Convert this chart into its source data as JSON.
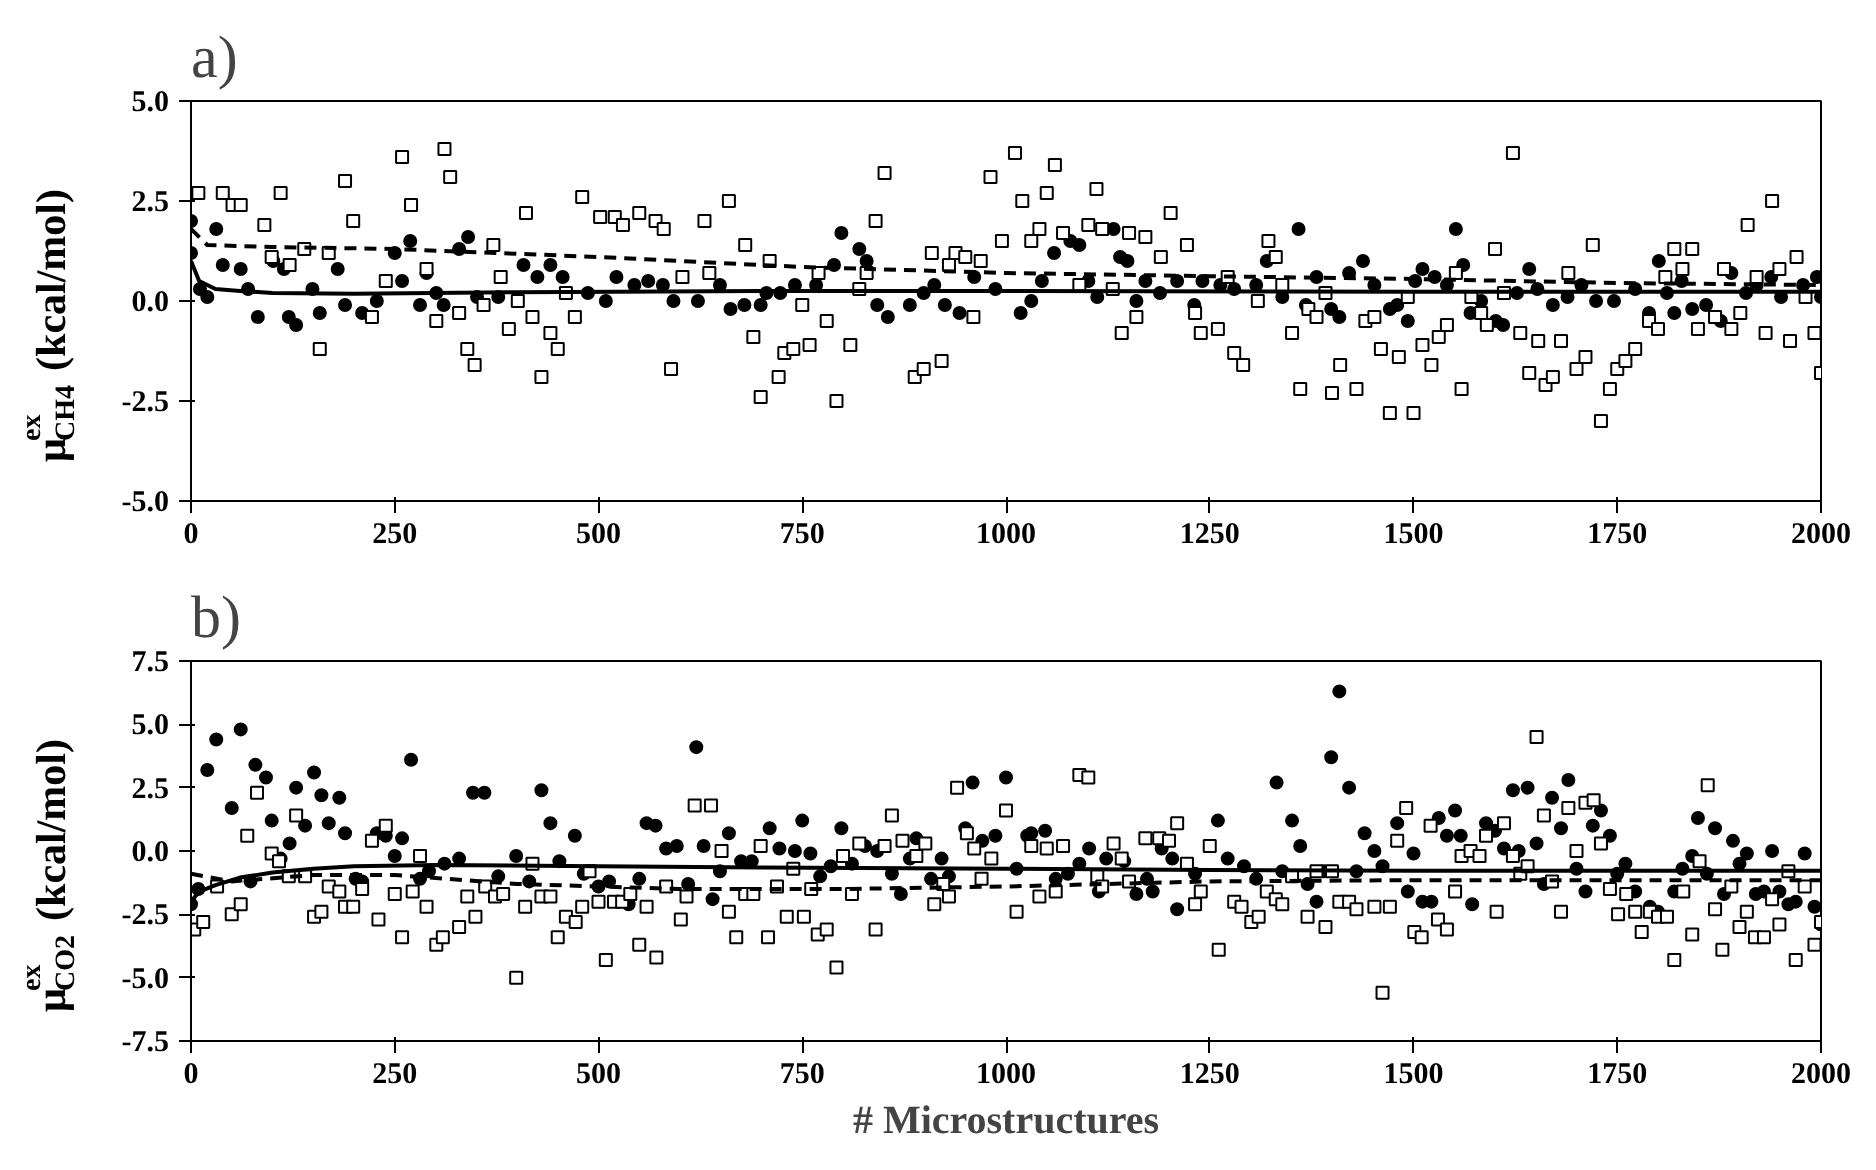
{
  "chart_data": [
    {
      "type": "scatter",
      "annotations": [
        "a)"
      ],
      "ylabel": "μ$^{ex}$$_{CH4}$ (kcal/mol)",
      "xlim": [
        0,
        2000
      ],
      "xticks": [
        0,
        250,
        500,
        750,
        1000,
        1250,
        1500,
        1750,
        2000
      ],
      "ylim": [
        -5,
        5
      ],
      "yticks": [
        {
          "value": -5,
          "label": "-5.0"
        },
        {
          "value": -2.5,
          "label": "-2.5"
        },
        {
          "value": 0,
          "label": "0.0"
        },
        {
          "value": 2.5,
          "label": "2.5"
        },
        {
          "value": 5,
          "label": "5.0"
        }
      ],
      "series": [
        {
          "type": "scatter",
          "marker": "circle",
          "color": "#000000",
          "x": [
            0,
            0,
            11,
            20,
            31,
            39,
            61,
            70,
            82,
            101,
            114,
            120,
            129,
            149,
            158,
            180,
            189,
            210,
            228,
            250,
            259,
            269,
            281,
            289,
            301,
            310,
            329,
            340,
            351,
            377,
            408,
            425,
            441,
            456,
            487,
            509,
            522,
            544,
            561,
            579,
            592,
            622,
            649,
            662,
            679,
            699,
            706,
            723,
            741,
            767,
            789,
            798,
            820,
            829,
            842,
            855,
            882,
            899,
            912,
            925,
            943,
            961,
            987,
            1018,
            1031,
            1044,
            1059,
            1079,
            1090,
            1101,
            1112,
            1132,
            1140,
            1149,
            1160,
            1171,
            1189,
            1210,
            1231,
            1241,
            1263,
            1280,
            1307,
            1320,
            1339,
            1359,
            1368,
            1381,
            1399,
            1409,
            1421,
            1438,
            1452,
            1471,
            1480,
            1493,
            1502,
            1511,
            1526,
            1541,
            1552,
            1561,
            1570,
            1583,
            1601,
            1610,
            1627,
            1642,
            1652,
            1671,
            1689,
            1706,
            1724,
            1746,
            1772,
            1789,
            1801,
            1811,
            1820,
            1829,
            1842,
            1859,
            1877,
            1890,
            1908,
            1921,
            1939,
            1951,
            1978,
            1995,
            2000
          ],
          "values": [
            2.0,
            1.2,
            0.3,
            0.1,
            1.8,
            0.9,
            0.8,
            0.3,
            -0.4,
            1.0,
            0.8,
            -0.4,
            -0.6,
            0.3,
            -0.3,
            0.8,
            -0.1,
            -0.3,
            0.0,
            1.2,
            0.5,
            1.5,
            -0.1,
            0.7,
            0.2,
            -0.1,
            1.3,
            1.6,
            0.1,
            0.1,
            0.9,
            0.6,
            0.9,
            0.6,
            0.2,
            0.0,
            0.6,
            0.4,
            0.5,
            0.4,
            0.0,
            0.0,
            0.4,
            -0.2,
            -0.1,
            -0.1,
            0.2,
            0.2,
            0.4,
            0.4,
            0.9,
            1.7,
            1.3,
            1.0,
            -0.1,
            -0.4,
            -0.1,
            0.2,
            0.4,
            -0.1,
            -0.3,
            0.6,
            0.3,
            -0.3,
            0.0,
            0.5,
            1.2,
            1.5,
            1.4,
            0.5,
            0.1,
            1.8,
            1.1,
            1.0,
            0.0,
            0.5,
            0.2,
            0.5,
            -0.1,
            0.5,
            0.4,
            0.3,
            0.4,
            1.0,
            0.1,
            1.8,
            -0.1,
            0.6,
            -0.2,
            -0.4,
            0.7,
            1.0,
            0.4,
            -0.2,
            -0.1,
            -0.5,
            0.5,
            0.8,
            0.6,
            0.4,
            1.8,
            0.9,
            -0.3,
            0.0,
            -0.5,
            -0.6,
            0.2,
            0.8,
            0.3,
            -0.1,
            0.1,
            0.4,
            0.0,
            0.0,
            0.3,
            -0.3,
            1.0,
            0.2,
            -0.3,
            0.5,
            -0.2,
            -0.1,
            -0.5,
            0.7,
            0.2,
            0.4,
            0.6,
            0.1,
            0.4,
            0.6,
            0.1
          ]
        },
        {
          "type": "scatter",
          "marker": "square",
          "color": "#000000",
          "x": [
            9,
            39,
            51,
            61,
            90,
            99,
            110,
            121,
            139,
            158,
            169,
            189,
            199,
            222,
            239,
            259,
            270,
            289,
            301,
            311,
            318,
            329,
            339,
            348,
            359,
            371,
            380,
            390,
            401,
            411,
            419,
            430,
            441,
            450,
            460,
            471,
            480,
            502,
            520,
            530,
            550,
            570,
            580,
            589,
            603,
            630,
            636,
            660,
            680,
            690,
            699,
            710,
            721,
            728,
            739,
            750,
            759,
            770,
            780,
            792,
            809,
            820,
            829,
            840,
            851,
            888,
            899,
            909,
            921,
            930,
            938,
            950,
            960,
            969,
            981,
            995,
            1011,
            1020,
            1031,
            1041,
            1050,
            1060,
            1070,
            1090,
            1101,
            1111,
            1118,
            1131,
            1142,
            1151,
            1160,
            1171,
            1190,
            1202,
            1222,
            1232,
            1239,
            1260,
            1272,
            1280,
            1291,
            1309,
            1322,
            1331,
            1339,
            1351,
            1361,
            1371,
            1381,
            1392,
            1400,
            1410,
            1430,
            1441,
            1452,
            1460,
            1471,
            1482,
            1493,
            1500,
            1511,
            1522,
            1531,
            1541,
            1552,
            1559,
            1571,
            1583,
            1590,
            1600,
            1611,
            1622,
            1631,
            1642,
            1653,
            1662,
            1671,
            1681,
            1690,
            1700,
            1711,
            1720,
            1730,
            1741,
            1750,
            1760,
            1772,
            1789,
            1800,
            1809,
            1820,
            1830,
            1842,
            1849,
            1870,
            1881,
            1890,
            1901,
            1910,
            1921,
            1932,
            1940,
            1949,
            1962,
            1970,
            1981,
            1992,
            2000
          ],
          "values": [
            2.7,
            2.7,
            2.4,
            2.4,
            1.9,
            1.1,
            2.7,
            0.9,
            1.3,
            -1.2,
            1.2,
            3.0,
            2.0,
            -0.4,
            0.5,
            3.6,
            2.4,
            0.8,
            -0.5,
            3.8,
            3.1,
            -0.3,
            -1.2,
            -1.6,
            -0.1,
            1.4,
            0.6,
            -0.7,
            0.0,
            2.2,
            -0.4,
            -1.9,
            -0.8,
            -1.2,
            0.2,
            -0.4,
            2.6,
            2.1,
            2.1,
            1.9,
            2.2,
            2.0,
            1.8,
            -1.7,
            0.6,
            2.0,
            0.7,
            2.5,
            1.4,
            -0.9,
            -2.4,
            1.0,
            -1.9,
            -1.3,
            -1.2,
            -0.1,
            -1.1,
            0.7,
            -0.5,
            -2.5,
            -1.1,
            0.3,
            0.7,
            2.0,
            3.2,
            -1.9,
            -1.7,
            1.2,
            -1.5,
            0.9,
            1.2,
            1.1,
            -0.4,
            1.0,
            3.1,
            1.5,
            3.7,
            2.5,
            1.5,
            1.8,
            2.7,
            3.4,
            1.7,
            0.4,
            1.9,
            2.8,
            1.8,
            0.3,
            -0.8,
            1.7,
            -0.4,
            1.6,
            1.1,
            2.2,
            1.4,
            -0.3,
            -0.8,
            -0.7,
            0.6,
            -1.3,
            -1.6,
            0.0,
            1.5,
            1.1,
            0.4,
            -0.8,
            -2.2,
            -0.2,
            -0.4,
            0.2,
            -2.3,
            -1.6,
            -2.2,
            -0.5,
            -0.4,
            -1.2,
            -2.8,
            -1.4,
            0.1,
            -2.8,
            -1.1,
            -1.6,
            -0.9,
            -0.6,
            0.7,
            -2.2,
            0.1,
            -0.3,
            -0.6,
            1.3,
            0.2,
            3.7,
            -0.8,
            -1.8,
            -1.0,
            -2.1,
            -1.9,
            -1.0,
            0.7,
            -1.7,
            -1.4,
            1.4,
            -3.0,
            -2.2,
            -1.7,
            -1.5,
            -1.2,
            -0.5,
            -0.7,
            0.6,
            1.3,
            0.8,
            1.3,
            -0.7,
            -0.4,
            0.8,
            -0.7,
            -0.3,
            1.9,
            0.6,
            -0.8,
            2.5,
            0.8,
            -1.0,
            1.1,
            0.1,
            -0.8,
            -1.8
          ]
        },
        {
          "type": "line",
          "line_style": "solid",
          "color": "#000000",
          "x": [
            0,
            10,
            30,
            60,
            100,
            200,
            400,
            700,
            1000,
            1500,
            2000
          ],
          "values": [
            1.0,
            0.5,
            0.3,
            0.25,
            0.2,
            0.18,
            0.22,
            0.25,
            0.25,
            0.23,
            0.23
          ]
        },
        {
          "type": "line",
          "line_style": "dashed",
          "color": "#000000",
          "x": [
            0,
            20,
            100,
            250,
            500,
            750,
            1000,
            1250,
            1500,
            1750,
            2000
          ],
          "values": [
            1.8,
            1.4,
            1.35,
            1.3,
            1.1,
            0.85,
            0.7,
            0.62,
            0.55,
            0.45,
            0.4
          ]
        }
      ]
    },
    {
      "type": "scatter",
      "annotations": [
        "b)"
      ],
      "ylabel": "μ$^{ex}$$_{CO2}$ (kcal/mol)",
      "xlabel": "# Microstructures",
      "xlim": [
        0,
        2000
      ],
      "xticks": [
        0,
        250,
        500,
        750,
        1000,
        1250,
        1500,
        1750,
        2000
      ],
      "ylim": [
        -7.5,
        7.5
      ],
      "yticks": [
        {
          "value": -7.5,
          "label": "-7.5"
        },
        {
          "value": -5,
          "label": "-5.0"
        },
        {
          "value": -2.5,
          "label": "-2.5"
        },
        {
          "value": 0,
          "label": "0.0"
        },
        {
          "value": 2.5,
          "label": "2.5"
        },
        {
          "value": 5,
          "label": "5.0"
        },
        {
          "value": 7.5,
          "label": "7.5"
        }
      ],
      "series": [
        {
          "type": "scatter",
          "marker": "circle",
          "color": "#000000",
          "x": [
            0,
            9,
            20,
            31,
            50,
            61,
            73,
            79,
            92,
            99,
            110,
            121,
            129,
            140,
            151,
            160,
            169,
            182,
            189,
            202,
            210,
            228,
            239,
            250,
            259,
            270,
            281,
            292,
            311,
            329,
            346,
            360,
            377,
            399,
            415,
            430,
            441,
            452,
            471,
            482,
            500,
            513,
            537,
            550,
            559,
            570,
            583,
            596,
            610,
            620,
            629,
            640,
            649,
            660,
            675,
            688,
            710,
            722,
            741,
            750,
            760,
            772,
            785,
            798,
            811,
            827,
            842,
            860,
            871,
            882,
            890,
            908,
            921,
            930,
            950,
            959,
            971,
            987,
            1000,
            1013,
            1026,
            1031,
            1048,
            1061,
            1076,
            1090,
            1102,
            1114,
            1123,
            1145,
            1160,
            1173,
            1180,
            1191,
            1204,
            1210,
            1232,
            1260,
            1272,
            1292,
            1307,
            1332,
            1339,
            1351,
            1361,
            1370,
            1381,
            1390,
            1399,
            1409,
            1421,
            1430,
            1440,
            1452,
            1462,
            1480,
            1493,
            1500,
            1511,
            1522,
            1531,
            1541,
            1551,
            1558,
            1572,
            1589,
            1600,
            1611,
            1622,
            1629,
            1640,
            1651,
            1660,
            1670,
            1681,
            1690,
            1700,
            1711,
            1720,
            1730,
            1741,
            1750,
            1760,
            1772,
            1790,
            1800,
            1820,
            1830,
            1842,
            1849,
            1860,
            1870,
            1881,
            1892,
            1900,
            1909,
            1920,
            1930,
            1940,
            1949,
            1960,
            1969,
            1980,
            1992,
            2000
          ],
          "values": [
            -2.1,
            -1.5,
            3.2,
            4.4,
            1.7,
            4.8,
            -1.2,
            3.4,
            2.9,
            1.2,
            -0.3,
            0.3,
            2.5,
            1.0,
            3.1,
            2.2,
            1.1,
            2.1,
            0.7,
            -1.1,
            -1.2,
            0.7,
            0.6,
            -0.2,
            0.5,
            3.6,
            -1.1,
            -0.8,
            -0.5,
            -0.3,
            2.3,
            2.3,
            -1.0,
            -0.2,
            -1.2,
            2.4,
            1.1,
            -0.4,
            0.6,
            -0.9,
            -1.4,
            -1.2,
            -2.1,
            -1.1,
            1.1,
            1.0,
            0.1,
            0.2,
            -1.3,
            4.1,
            0.2,
            -1.9,
            -0.8,
            0.7,
            -0.4,
            -0.4,
            0.9,
            0.1,
            0.0,
            1.2,
            -0.1,
            -1.0,
            -0.6,
            0.9,
            -0.5,
            0.2,
            0.0,
            -0.9,
            -1.7,
            -0.3,
            0.5,
            -1.1,
            -0.3,
            -1.0,
            0.9,
            2.7,
            0.4,
            0.6,
            2.9,
            -0.7,
            0.6,
            0.7,
            0.8,
            -1.1,
            -0.9,
            -0.5,
            0.1,
            -1.6,
            -0.3,
            -0.4,
            -1.7,
            -1.1,
            -1.6,
            0.1,
            -0.3,
            -2.3,
            -0.9,
            1.2,
            -0.3,
            -0.6,
            -1.1,
            2.7,
            -0.8,
            1.2,
            0.2,
            -1.3,
            -2.0,
            -0.8,
            3.7,
            6.3,
            2.5,
            -0.8,
            0.7,
            0.0,
            -0.6,
            1.1,
            -1.6,
            -0.1,
            -2.0,
            -2.0,
            1.3,
            0.6,
            1.6,
            0.6,
            -2.1,
            1.1,
            0.8,
            0.1,
            2.4,
            0.0,
            2.5,
            0.3,
            -1.3,
            2.1,
            0.9,
            2.8,
            -0.7,
            -1.6,
            1.0,
            1.6,
            0.6,
            -0.9,
            -0.5,
            -1.6,
            -2.2,
            -2.4,
            -1.6,
            -0.7,
            -0.2,
            1.3,
            -0.9,
            0.9,
            -1.7,
            0.4,
            -0.5,
            -0.1,
            -1.7,
            -1.6,
            0.0,
            -1.6,
            -2.1,
            -2.0,
            -0.1,
            -2.2,
            -2.9
          ]
        },
        {
          "type": "scatter",
          "marker": "square",
          "color": "#000000",
          "x": [
            4,
            15,
            32,
            50,
            61,
            69,
            81,
            99,
            108,
            120,
            129,
            140,
            151,
            160,
            169,
            182,
            189,
            199,
            210,
            222,
            230,
            239,
            250,
            259,
            272,
            281,
            289,
            301,
            309,
            329,
            339,
            349,
            361,
            373,
            383,
            399,
            410,
            419,
            430,
            441,
            450,
            460,
            472,
            480,
            489,
            500,
            509,
            519,
            529,
            539,
            550,
            559,
            571,
            583,
            601,
            608,
            618,
            638,
            651,
            660,
            669,
            680,
            690,
            699,
            708,
            719,
            731,
            739,
            752,
            761,
            769,
            780,
            792,
            800,
            811,
            820,
            840,
            851,
            860,
            873,
            890,
            901,
            912,
            923,
            930,
            940,
            952,
            961,
            970,
            982,
            1000,
            1013,
            1031,
            1041,
            1050,
            1061,
            1070,
            1090,
            1101,
            1112,
            1118,
            1132,
            1142,
            1151,
            1171,
            1188,
            1200,
            1210,
            1222,
            1232,
            1239,
            1250,
            1261,
            1280,
            1289,
            1301,
            1310,
            1320,
            1331,
            1339,
            1351,
            1370,
            1381,
            1392,
            1400,
            1409,
            1421,
            1430,
            1452,
            1462,
            1471,
            1480,
            1491,
            1501,
            1510,
            1521,
            1530,
            1541,
            1551,
            1559,
            1570,
            1581,
            1589,
            1602,
            1611,
            1622,
            1631,
            1640,
            1651,
            1660,
            1670,
            1681,
            1690,
            1700,
            1711,
            1721,
            1730,
            1741,
            1751,
            1761,
            1772,
            1780,
            1790,
            1800,
            1811,
            1820,
            1831,
            1842,
            1851,
            1861,
            1870,
            1879,
            1890,
            1900,
            1909,
            1919,
            1930,
            1940,
            1949,
            1960,
            1969,
            1980,
            1992,
            2000
          ],
          "values": [
            -3.1,
            -2.8,
            -1.4,
            -2.5,
            -2.1,
            0.6,
            2.3,
            -0.1,
            -0.4,
            -1.0,
            1.4,
            -1.0,
            -2.6,
            -2.4,
            -1.4,
            -1.6,
            -2.2,
            -2.2,
            -1.5,
            0.4,
            -2.7,
            1.0,
            -1.7,
            -3.4,
            -1.6,
            -0.2,
            -2.2,
            -3.7,
            -3.4,
            -3.0,
            -1.8,
            -2.6,
            -1.4,
            -1.8,
            -1.7,
            -5.0,
            -2.2,
            -0.5,
            -1.8,
            -1.8,
            -3.4,
            -2.6,
            -2.8,
            -2.2,
            -0.8,
            -2.0,
            -4.3,
            -2.0,
            -2.0,
            -1.7,
            -3.7,
            -2.2,
            -4.2,
            -1.4,
            -2.7,
            -1.8,
            1.8,
            1.8,
            0.0,
            -2.4,
            -3.4,
            -1.7,
            -1.7,
            0.2,
            -3.4,
            -1.4,
            -2.6,
            -0.7,
            -2.6,
            -1.5,
            -3.3,
            -3.1,
            -4.6,
            -0.2,
            -1.7,
            0.3,
            -3.1,
            0.2,
            1.4,
            0.4,
            -0.2,
            0.3,
            -2.1,
            -1.3,
            -1.8,
            2.5,
            0.7,
            0.1,
            -1.1,
            -0.3,
            1.6,
            -2.4,
            0.2,
            -1.8,
            0.1,
            -1.6,
            0.2,
            3.0,
            2.9,
            -1.0,
            -1.4,
            0.3,
            -0.3,
            -1.2,
            0.5,
            0.5,
            0.4,
            1.1,
            -0.5,
            -2.1,
            -1.6,
            0.2,
            -3.9,
            -2.0,
            -2.2,
            -2.8,
            -2.6,
            -1.6,
            -1.9,
            -2.1,
            -1.0,
            -2.6,
            -0.8,
            -3.0,
            -0.8,
            -2.0,
            -2.0,
            -2.3,
            -2.2,
            -5.6,
            -2.2,
            0.4,
            1.7,
            -3.2,
            -3.4,
            1.0,
            -2.7,
            -3.1,
            -1.6,
            -0.2,
            0.0,
            -0.2,
            0.6,
            -2.4,
            1.1,
            -0.2,
            -0.9,
            -0.6,
            4.5,
            1.4,
            -1.2,
            -2.4,
            1.7,
            0.0,
            1.9,
            2.0,
            0.3,
            -1.5,
            -2.5,
            -1.7,
            -2.4,
            -3.2,
            -2.4,
            -2.6,
            -2.6,
            -4.3,
            -1.6,
            -3.3,
            -0.4,
            2.6,
            -2.3,
            -3.9,
            -1.4,
            -3.0,
            -2.4,
            -3.4,
            -3.4,
            -1.9,
            -2.9,
            -0.8,
            -4.3,
            -1.4,
            -3.7,
            -2.8
          ]
        },
        {
          "type": "line",
          "line_style": "solid",
          "color": "#000000",
          "x": [
            0,
            10,
            30,
            60,
            100,
            150,
            200,
            300,
            500,
            700,
            1000,
            1250,
            1500,
            1750,
            2000
          ],
          "values": [
            -2.0,
            -1.6,
            -1.35,
            -1.05,
            -0.85,
            -0.7,
            -0.6,
            -0.55,
            -0.6,
            -0.65,
            -0.7,
            -0.75,
            -0.78,
            -0.78,
            -0.78
          ]
        },
        {
          "type": "line",
          "line_style": "dashed",
          "color": "#000000",
          "x": [
            0,
            50,
            150,
            250,
            400,
            600,
            800,
            1000,
            1250,
            1500,
            1750,
            2000
          ],
          "values": [
            -0.9,
            -1.2,
            -0.95,
            -0.95,
            -1.3,
            -1.5,
            -1.5,
            -1.4,
            -1.2,
            -1.15,
            -1.15,
            -1.15
          ]
        }
      ]
    }
  ]
}
